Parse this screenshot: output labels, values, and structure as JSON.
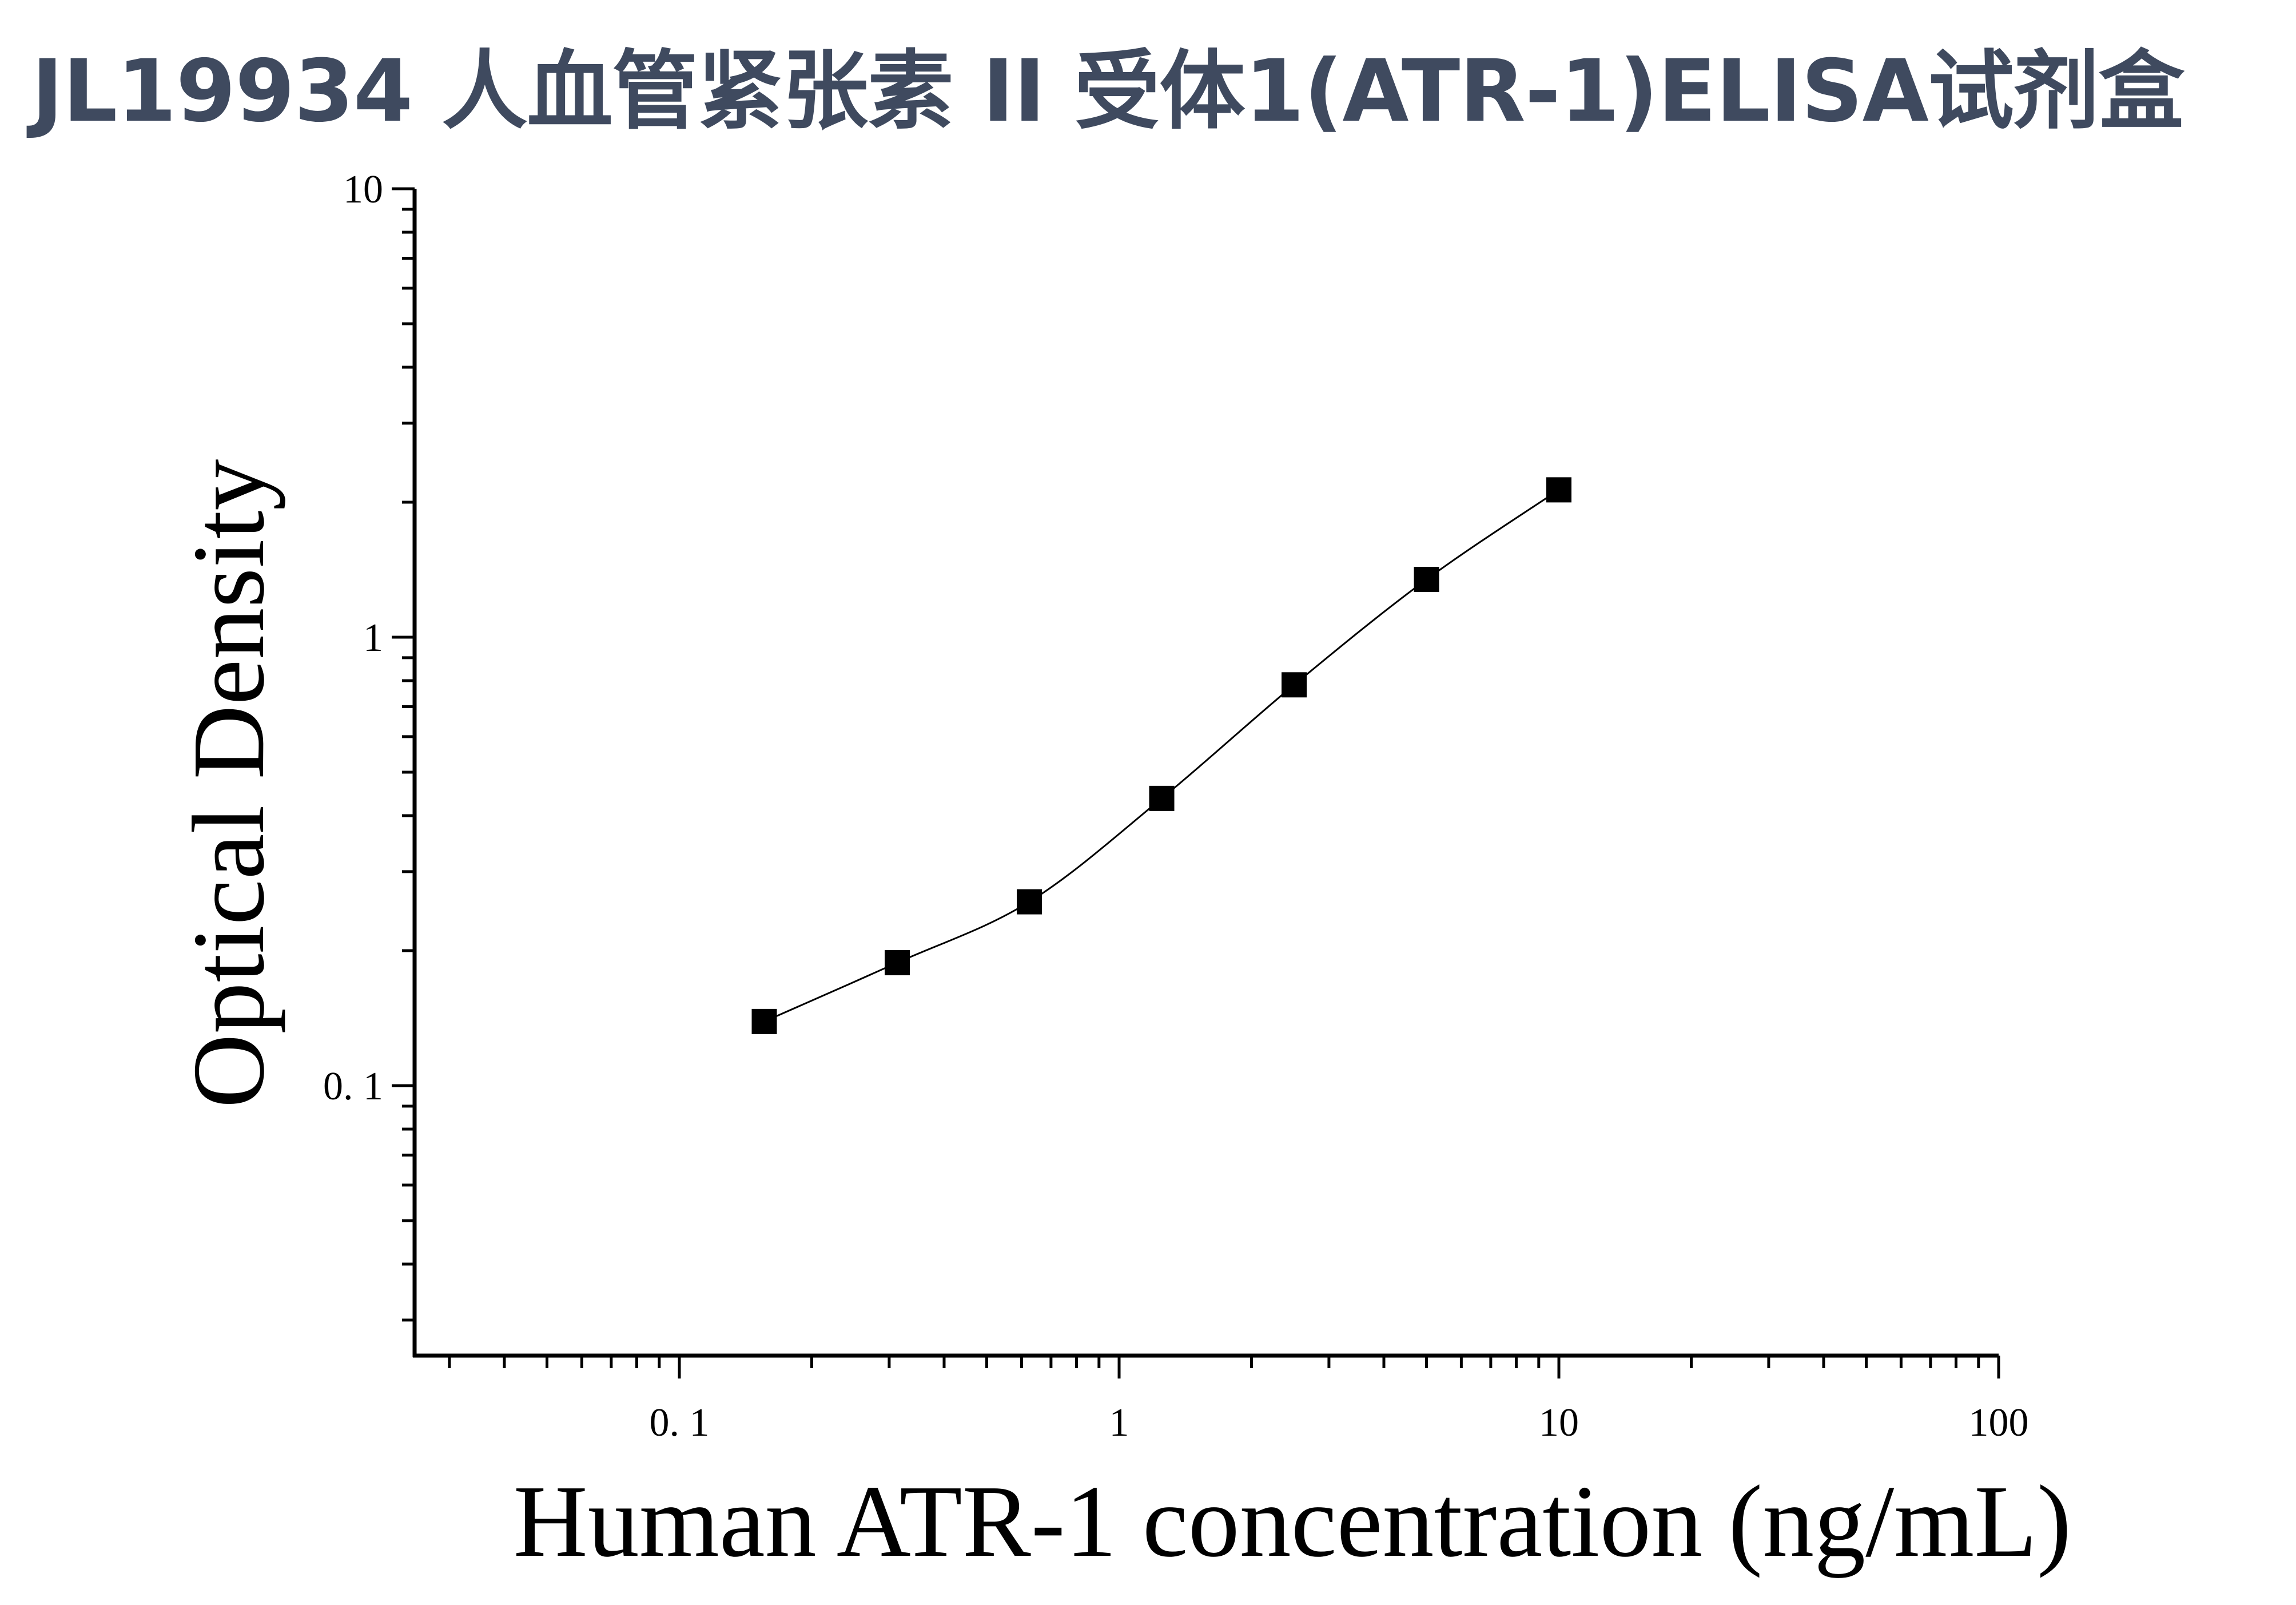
{
  "title": "JL19934 人血管紧张素 II 受体1(ATR-1)ELISA试剂盒",
  "chart_data": {
    "type": "scatter",
    "title": "JL19934 人血管紧张素 II 受体1(ATR-1)ELISA试剂盒",
    "xlabel": "Human ATR-1 concentration (ng/mL)",
    "ylabel": "Optical Density",
    "x_scale": "log",
    "y_scale": "log",
    "xlim": [
      0.025,
      100
    ],
    "ylim": [
      0.025,
      10
    ],
    "x_ticks": [
      0.1,
      1,
      10,
      100
    ],
    "x_tick_labels": [
      "0. 1",
      "1",
      "10",
      "100"
    ],
    "y_ticks": [
      0.1,
      1,
      10
    ],
    "y_tick_labels": [
      "0. 1",
      "1",
      "10"
    ],
    "grid": false,
    "series": [
      {
        "marker": "square",
        "color": "#000000",
        "x": [
          0.156,
          0.313,
          0.625,
          1.25,
          2.5,
          5,
          10
        ],
        "y": [
          0.139,
          0.188,
          0.257,
          0.437,
          0.783,
          1.345,
          2.131
        ]
      }
    ],
    "fit_curve": true
  }
}
